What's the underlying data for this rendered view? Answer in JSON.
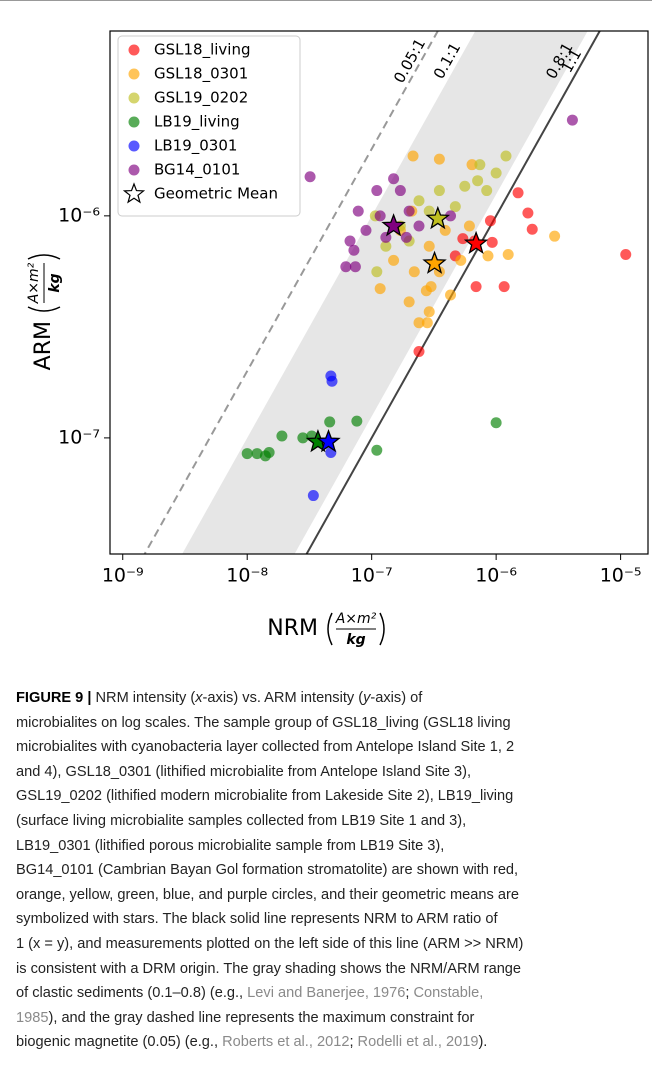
{
  "chart_data": {
    "type": "scatter",
    "x_label": "NRM",
    "x_unit_numerator": "A×m²",
    "x_unit_denominator": "kg",
    "y_label": "ARM",
    "y_unit_numerator": "A×m²",
    "y_unit_denominator": "kg",
    "log_x": true,
    "log_y": true,
    "xlim": [
      7.9e-10,
      1.66e-05
    ],
    "ylim": [
      3e-08,
      6.8e-06
    ],
    "xticks": [
      {
        "value": 1e-09,
        "label": "10⁻⁹"
      },
      {
        "value": 1e-08,
        "label": "10⁻⁸"
      },
      {
        "value": 1e-07,
        "label": "10⁻⁷"
      },
      {
        "value": 1e-06,
        "label": "10⁻⁶"
      },
      {
        "value": 1e-05,
        "label": "10⁻⁵"
      }
    ],
    "yticks": [
      {
        "value": 1e-07,
        "label": "10⁻⁷"
      },
      {
        "value": 1e-06,
        "label": "10⁻⁶"
      }
    ],
    "legend": "upper left",
    "ratio_lines": [
      {
        "label": "0.05:1",
        "ratio": 0.05,
        "color": "#999999",
        "dashed": true
      },
      {
        "label": "0.1:1",
        "ratio": 0.1
      },
      {
        "label": "0.8:1",
        "ratio": 0.8
      },
      {
        "label": "1:1",
        "ratio": 1,
        "color": "#444444",
        "dashed": false
      }
    ],
    "shaded_range": [
      0.1,
      0.8
    ],
    "shade_color": "#e6e6e6",
    "series": [
      {
        "name": "GSL18_living",
        "color": "#ff0000",
        "x": [
          1.1e-05,
          1.8e-06,
          1.95e-06,
          1.5e-06,
          9e-07,
          9.3e-07,
          1.16e-06,
          5.4e-07,
          6.7e-07,
          4.7e-07,
          2.4e-07,
          6.9e-07
        ],
        "values": [
          6.7e-07,
          1.03e-06,
          8.7e-07,
          1.27e-06,
          9.5e-07,
          7.6e-07,
          4.8e-07,
          7.9e-07,
          7.7e-07,
          6.6e-07,
          2.45e-07,
          4.8e-07
        ]
      },
      {
        "name": "GSL18_0301",
        "color": "#ffa500",
        "x": [
          2.15e-07,
          3.5e-07,
          6.4e-07,
          2.95e-06,
          1.25e-06,
          1.17e-07,
          2.4e-07,
          2.75e-07,
          2e-07,
          3.5e-07,
          2.9e-07,
          5.2e-07,
          4.3e-07,
          2.8e-07,
          1.5e-07,
          3.9e-07,
          6.1e-07,
          8.6e-07,
          1.7e-07,
          3e-07,
          2.2e-07,
          2.9e-07,
          2.1e-07
        ],
        "values": [
          1.86e-06,
          1.8e-06,
          1.7e-06,
          8.1e-07,
          6.7e-07,
          4.7e-07,
          3.3e-07,
          4.6e-07,
          4.1e-07,
          5.6e-07,
          7.3e-07,
          6.3e-07,
          4.4e-07,
          3.3e-07,
          6.3e-07,
          8.6e-07,
          9e-07,
          6.6e-07,
          8.6e-07,
          4.8e-07,
          5.6e-07,
          3.7e-07,
          1.05e-06
        ]
      },
      {
        "name": "GSL19_0202",
        "color": "#bfbf20",
        "x": [
          1e-06,
          1.2e-06,
          7.4e-07,
          7.1e-07,
          5.6e-07,
          8.4e-07,
          3.5e-07,
          2.9e-07,
          1.7e-07,
          1.3e-07,
          1.07e-07,
          4.7e-07,
          2e-07,
          1.1e-07,
          2.4e-07
        ],
        "values": [
          1.56e-06,
          1.86e-06,
          1.7e-06,
          1.44e-06,
          1.36e-06,
          1.3e-06,
          1.3e-06,
          1.05e-06,
          9e-07,
          7.3e-07,
          1e-06,
          1.1e-06,
          7.7e-07,
          5.6e-07,
          1.17e-06
        ]
      },
      {
        "name": "LB19_living",
        "color": "#008000",
        "x": [
          1e-08,
          1.2e-08,
          1.4e-08,
          1.5e-08,
          1.9e-08,
          2.8e-08,
          3.3e-08,
          4.6e-08,
          7.6e-08,
          1.1e-07,
          1e-06
        ],
        "values": [
          8.5e-08,
          8.5e-08,
          8.3e-08,
          8.6e-08,
          1.02e-07,
          1e-07,
          1.02e-07,
          1.18e-07,
          1.19e-07,
          8.8e-08,
          1.17e-07
        ]
      },
      {
        "name": "LB19_0301",
        "color": "#0000ff",
        "x": [
          4.7e-08,
          4.8e-08,
          3.4e-08,
          4.7e-08
        ],
        "values": [
          1.9e-07,
          1.8e-07,
          5.5e-08,
          8.6e-08
        ]
      },
      {
        "name": "BG14_0101",
        "color": "#800080",
        "x": [
          3.2e-08,
          7.8e-08,
          1.1e-07,
          1.5e-07,
          1.7e-07,
          6.7e-08,
          6.2e-08,
          7.2e-08,
          9e-08,
          1.17e-07,
          2e-07,
          2.4e-07,
          1.9e-07,
          7.4e-08,
          1.3e-07,
          4.1e-06,
          4.3e-07
        ],
        "values": [
          1.5e-06,
          1.05e-06,
          1.3e-06,
          1.47e-06,
          1.3e-06,
          7.7e-07,
          5.9e-07,
          7e-07,
          8.6e-07,
          1e-06,
          1.05e-06,
          9e-07,
          8e-07,
          5.9e-07,
          8e-07,
          2.7e-06,
          1e-06
        ]
      },
      {
        "name": "Geometric Mean",
        "marker": "star",
        "color": "#ffffff",
        "colors": [
          "#ff0000",
          "#ffa500",
          "#bfbf20",
          "#008000",
          "#0000ff",
          "#800080"
        ],
        "x": [
          6.9e-07,
          3.2e-07,
          3.4e-07,
          3.7e-08,
          4.5e-08,
          1.5e-07
        ],
        "values": [
          7.5e-07,
          6.1e-07,
          9.7e-07,
          9.6e-08,
          9.6e-08,
          9e-07
        ]
      }
    ]
  },
  "caption": {
    "lines": [
      [
        {
          "t": "FIGURE 9 |",
          "s": "b"
        },
        {
          "t": " NRM intensity ("
        },
        {
          "t": "x",
          "s": "i"
        },
        {
          "t": "-axis) vs. ARM intensity ("
        },
        {
          "t": "y",
          "s": "i"
        },
        {
          "t": "-axis) of"
        }
      ],
      [
        {
          "t": "microbialites on log scales. The sample group of GSL18_living (GSL18 living"
        }
      ],
      [
        {
          "t": "microbialites with cyanobacteria layer collected from Antelope Island Site 1, 2"
        }
      ],
      [
        {
          "t": "and 4), GSL18_0301 (lithified microbialite from Antelope Island Site 3),"
        }
      ],
      [
        {
          "t": "GSL19_0202 (lithified modern microbialite from Lakeside Site 2), LB19_living"
        }
      ],
      [
        {
          "t": "(surface living microbialite samples collected from LB19 Site 1 and 3),"
        }
      ],
      [
        {
          "t": "LB19_0301 (lithified porous microbialite sample from LB19 Site 3),"
        }
      ],
      [
        {
          "t": "BG14_0101 (Cambrian Bayan Gol formation stromatolite) are shown with red,"
        }
      ],
      [
        {
          "t": "orange, yellow, green, blue, and purple circles, and their geometric means are"
        }
      ],
      [
        {
          "t": "symbolized with stars. The black solid line represents NRM to ARM ratio of"
        }
      ],
      [
        {
          "t": "1 (x = y), and measurements plotted on the left side of this line (ARM >> NRM)"
        }
      ],
      [
        {
          "t": "is consistent with a DRM origin. The gray shading shows the NRM/ARM range"
        }
      ],
      [
        {
          "t": "of clastic sediments (0.1–0.8) (e.g., "
        },
        {
          "t": "Levi and Banerjee, 1976",
          "s": "r"
        },
        {
          "t": "; "
        },
        {
          "t": "Constable,",
          "s": "r"
        }
      ],
      [
        {
          "t": "1985",
          "s": "r"
        },
        {
          "t": "), and the gray dashed line represents the maximum constraint for"
        }
      ],
      [
        {
          "t": "biogenic magnetite (0.05) (e.g., "
        },
        {
          "t": "Roberts et al., 2012",
          "s": "r"
        },
        {
          "t": "; "
        },
        {
          "t": "Rodelli et al., 2019",
          "s": "r"
        },
        {
          "t": ")."
        }
      ]
    ]
  }
}
